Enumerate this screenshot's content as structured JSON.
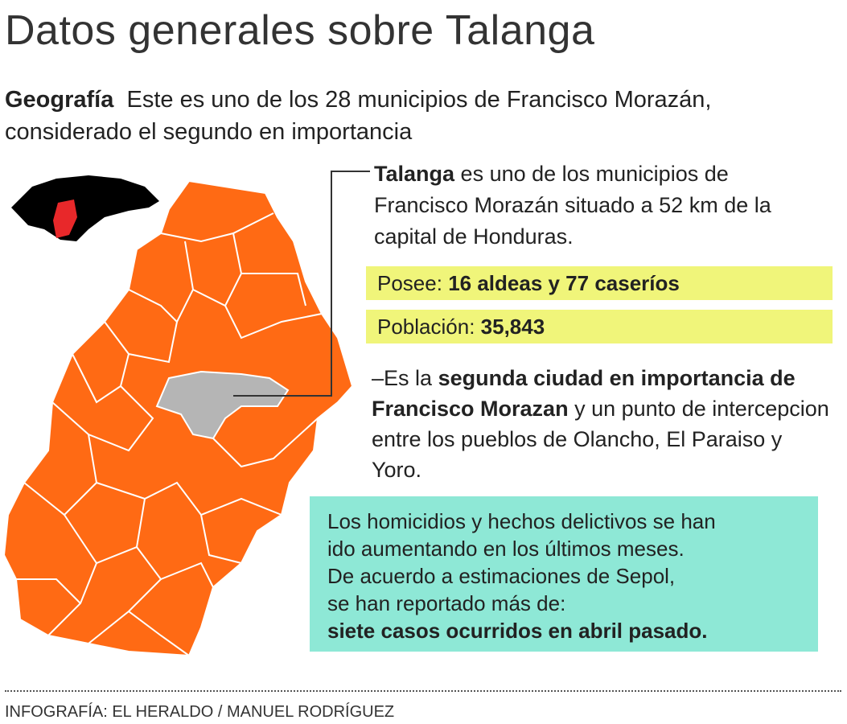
{
  "title": "Datos generales sobre Talanga",
  "geography": {
    "label": "Geografía",
    "text": "Este es uno de los 28 municipios de Francisco Morazán, considerado el segundo en importancia"
  },
  "intro": {
    "bold": "Talanga",
    "text": "es uno de los municipios de Francisco Morazán situado a 52 km de la capital de Honduras."
  },
  "facts": [
    {
      "label": "Posee:",
      "value": "16 aldeas y 77 caseríos"
    },
    {
      "label": "Población:",
      "value": "35,843"
    }
  ],
  "importance": {
    "prefix": "–Es la",
    "bold": "segunda ciudad en importancia de Francisco Morazan",
    "text": "y un punto de intercepcion entre los pueblos de Olancho, El Paraiso y Yoro."
  },
  "crime": {
    "lines": [
      "Los homicidios y hechos delictivos se han",
      "ido aumentando en los últimos meses.",
      "De acuerdo a estimaciones de Sepol,",
      "se han reportado más de:"
    ],
    "bold": "siete casos ocurridos en abril pasado."
  },
  "credit": "INFOGRAFÍA: EL HERALDO / MANUEL RODRÍGUEZ"
}
